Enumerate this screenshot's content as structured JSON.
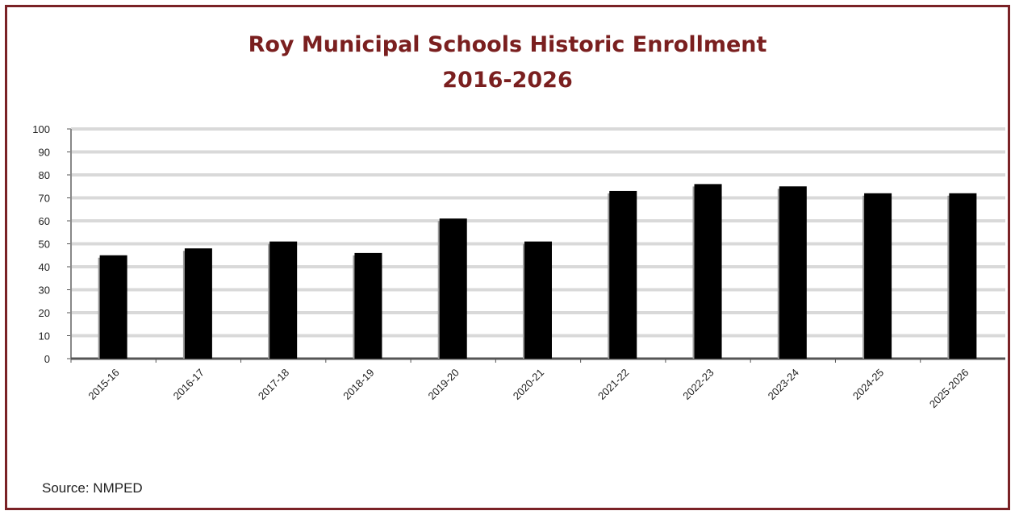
{
  "chart_data": {
    "type": "bar",
    "title": "Roy Municipal Schools Historic Enrollment",
    "subtitle": "2016-2026",
    "categories": [
      "2015-16",
      "2016-17",
      "2017-18",
      "2018-19",
      "2019-20",
      "2020-21",
      "2021-22",
      "2022-23",
      "2023-24",
      "2024-25",
      "2025-2026"
    ],
    "values": [
      45,
      48,
      51,
      46,
      61,
      51,
      73,
      76,
      75,
      72,
      72
    ],
    "xlabel": "",
    "ylabel": "",
    "ylim": [
      0,
      100
    ],
    "yticks": [
      0,
      10,
      20,
      30,
      40,
      50,
      60,
      70,
      80,
      90,
      100
    ],
    "grid": true,
    "bar_color": "#000000",
    "grid_color": "#d9d9d9",
    "title_color": "#7a1f1f"
  },
  "source": "Source: NMPED"
}
